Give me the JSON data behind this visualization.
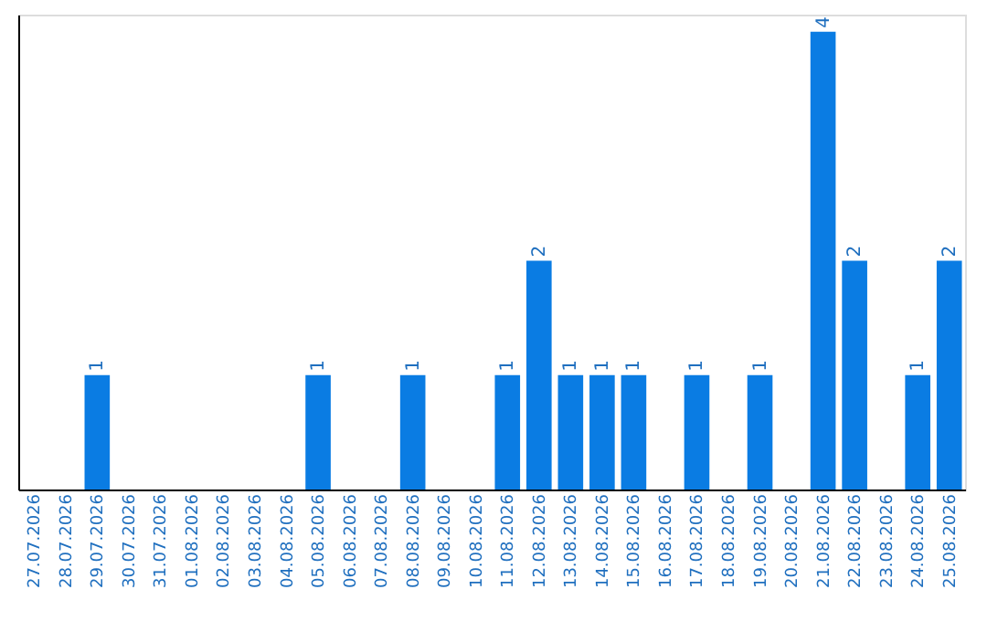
{
  "chart_data": {
    "type": "bar",
    "categories": [
      "27.07.2026",
      "28.07.2026",
      "29.07.2026",
      "30.07.2026",
      "31.07.2026",
      "01.08.2026",
      "02.08.2026",
      "03.08.2026",
      "04.08.2026",
      "05.08.2026",
      "06.08.2026",
      "07.08.2026",
      "08.08.2026",
      "09.08.2026",
      "10.08.2026",
      "11.08.2026",
      "12.08.2026",
      "13.08.2026",
      "14.08.2026",
      "15.08.2026",
      "16.08.2026",
      "17.08.2026",
      "18.08.2026",
      "19.08.2026",
      "20.08.2026",
      "21.08.2026",
      "22.08.2026",
      "23.08.2026",
      "24.08.2026",
      "25.08.2026"
    ],
    "values": [
      0,
      0,
      1,
      0,
      0,
      0,
      0,
      0,
      0,
      1,
      0,
      0,
      1,
      0,
      0,
      1,
      2,
      1,
      1,
      1,
      0,
      1,
      0,
      1,
      0,
      4,
      2,
      0,
      1,
      2
    ],
    "value_labels": [
      null,
      null,
      "1",
      null,
      null,
      null,
      null,
      null,
      null,
      "1",
      null,
      null,
      "1",
      null,
      null,
      "1",
      "2",
      "1",
      "1",
      "1",
      null,
      "1",
      null,
      "1",
      null,
      "4",
      "2",
      null,
      "1",
      "2"
    ],
    "color": "#0a7ce3",
    "ylim": [
      0,
      4.15
    ],
    "tick_labels": "x",
    "grid": false
  }
}
